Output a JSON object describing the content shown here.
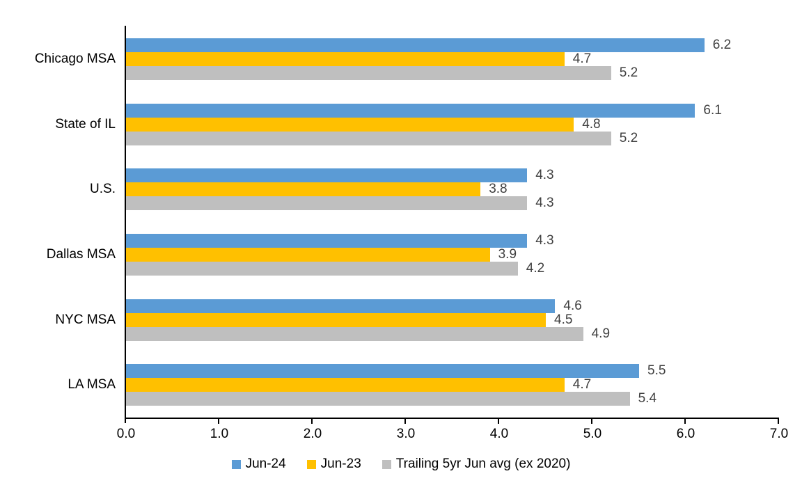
{
  "chart_data": {
    "type": "bar",
    "orientation": "horizontal",
    "title": "",
    "xlabel": "",
    "ylabel": "",
    "categories": [
      "Chicago MSA",
      "State of IL",
      "U.S.",
      "Dallas MSA",
      "NYC MSA",
      "LA MSA"
    ],
    "series": [
      {
        "name": "Jun-24",
        "color": "#5B9BD5",
        "values": [
          6.2,
          6.1,
          4.3,
          4.3,
          4.6,
          5.5
        ]
      },
      {
        "name": "Jun-23",
        "color": "#FFC000",
        "values": [
          4.7,
          4.8,
          3.8,
          3.9,
          4.5,
          4.7
        ]
      },
      {
        "name": "Trailing 5yr Jun avg (ex 2020)",
        "color": "#BFBFBF",
        "values": [
          5.2,
          5.2,
          4.3,
          4.2,
          4.9,
          5.4
        ]
      }
    ],
    "xlim": [
      0.0,
      7.0
    ],
    "x_ticks": [
      "0.0",
      "1.0",
      "2.0",
      "3.0",
      "4.0",
      "5.0",
      "6.0",
      "7.0"
    ],
    "value_labels_shown": true,
    "value_label_decimals": 1,
    "grid": false,
    "legend_position": "bottom"
  },
  "colors": {
    "background": "#FFFFFF",
    "axis": "#000000",
    "category_text": "#000000",
    "tick_text": "#000000",
    "legend_text": "#000000",
    "value_label_text": "#404040"
  }
}
